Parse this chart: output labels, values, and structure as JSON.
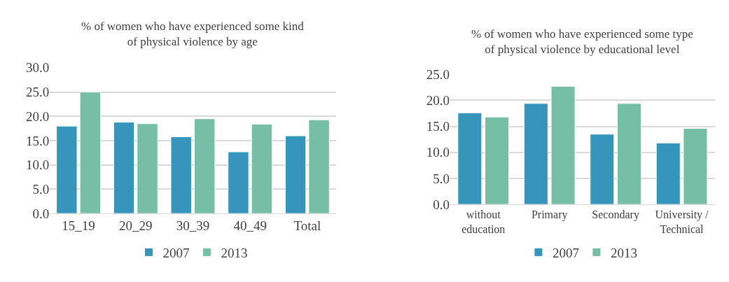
{
  "chart_data": [
    {
      "type": "bar",
      "title": "% of women who have experienced some kind\nof physical violence by age",
      "categories": [
        "15_19",
        "20_29",
        "30_39",
        "40_49",
        "Total"
      ],
      "series": [
        {
          "name": "2007",
          "color": "#3595bb",
          "values": [
            18.0,
            18.8,
            15.8,
            12.7,
            16.0
          ]
        },
        {
          "name": "2013",
          "color": "#76bea6",
          "values": [
            25.0,
            18.5,
            19.5,
            18.4,
            19.3
          ]
        }
      ],
      "ylim": [
        0,
        30
      ],
      "yticks": [
        {
          "value": 0,
          "label": "0.0"
        },
        {
          "value": 5,
          "label": "5.0"
        },
        {
          "value": 10,
          "label": "10.0"
        },
        {
          "value": 15,
          "label": "15.0"
        },
        {
          "value": 20,
          "label": "20.0"
        },
        {
          "value": 25,
          "label": "25.0"
        },
        {
          "value": 30,
          "label": "30.0"
        }
      ],
      "grid": "y",
      "legend": "bottom"
    },
    {
      "type": "bar",
      "title": "% of women who have experienced some type\nof physical violence by educational level",
      "categories": [
        "without\neducation",
        "Primary",
        "Secondary",
        "University /\nTechnical"
      ],
      "series": [
        {
          "name": "2007",
          "color": "#3595bb",
          "values": [
            17.6,
            19.4,
            13.5,
            11.8
          ]
        },
        {
          "name": "2013",
          "color": "#76bea6",
          "values": [
            16.8,
            22.7,
            19.4,
            14.6
          ]
        }
      ],
      "ylim": [
        0,
        25
      ],
      "yticks": [
        {
          "value": 0,
          "label": "0.0"
        },
        {
          "value": 5,
          "label": "5.0"
        },
        {
          "value": 10,
          "label": "10.0"
        },
        {
          "value": 15,
          "label": "15.0"
        },
        {
          "value": 20,
          "label": "20.0"
        },
        {
          "value": 25,
          "label": "25.0"
        }
      ],
      "grid": "y",
      "legend": "bottom"
    }
  ]
}
